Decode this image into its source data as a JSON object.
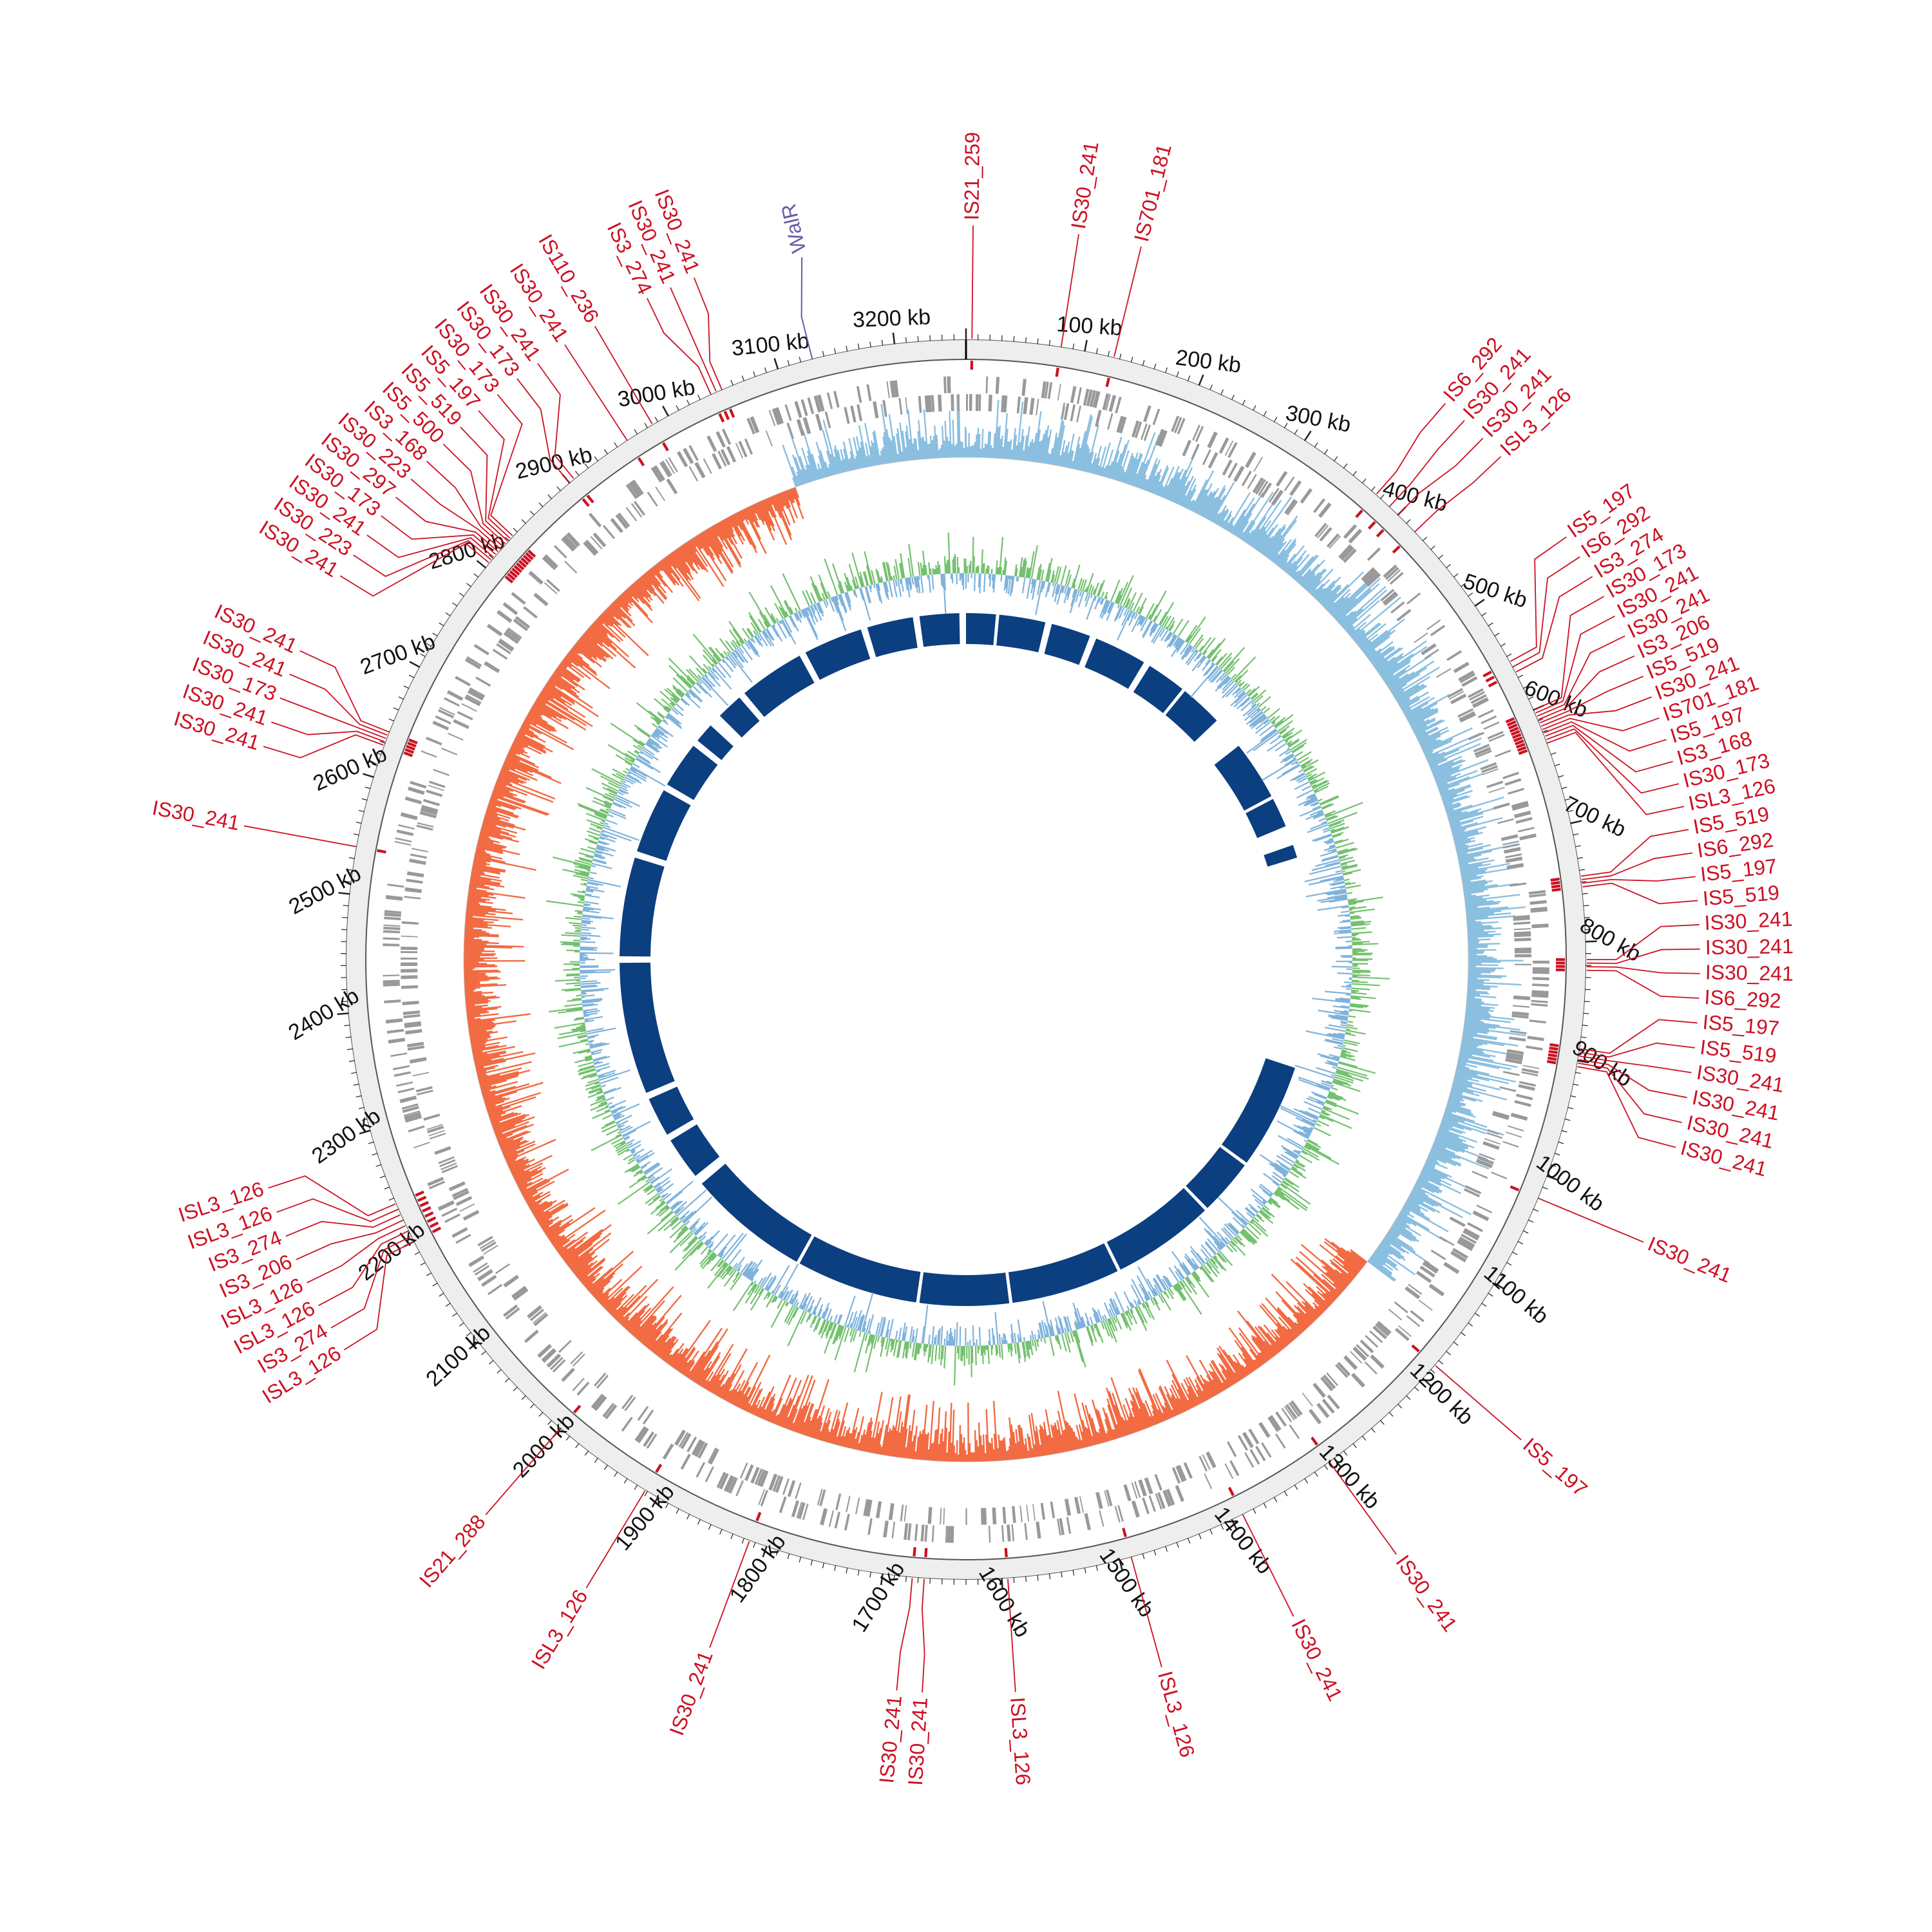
{
  "colors": {
    "is_element": "#cc1122",
    "highlight": "#6a5aa8",
    "tick_label": "#111111",
    "backbone_fill": "#eeeeee",
    "backbone_stroke": "#555555",
    "cds": "#999999",
    "skew_positive": "#f26b43",
    "skew_negative": "#8bbfe0",
    "gc_content": "#74c170",
    "gc_content_alt": "#7fb3dc",
    "conserved_blocks": "#0b3f80"
  },
  "genome_length_kb": 3260,
  "axis": {
    "tick_labels": [
      "100 kb",
      "200 kb",
      "300 kb",
      "400 kb",
      "500 kb",
      "600 kb",
      "700 kb",
      "800 kb",
      "900 kb",
      "1000 kb",
      "1100 kb",
      "1200 kb",
      "1300 kb",
      "1400 kb",
      "1500 kb",
      "1600 kb",
      "1700 kb",
      "1800 kb",
      "1900 kb",
      "2000 kb",
      "2100 kb",
      "2200 kb",
      "2300 kb",
      "2400 kb",
      "2500 kb",
      "2600 kb",
      "2700 kb",
      "2800 kb",
      "2900 kb",
      "3000 kb",
      "3100 kb",
      "3200 kb"
    ],
    "tick_positions_kb": [
      100,
      200,
      300,
      400,
      500,
      600,
      700,
      800,
      900,
      1000,
      1100,
      1200,
      1300,
      1400,
      1500,
      1600,
      1700,
      1800,
      1900,
      2000,
      2100,
      2200,
      2300,
      2400,
      2500,
      2600,
      2700,
      2800,
      2900,
      3000,
      3100,
      3200
    ]
  },
  "is_elements": [
    {
      "label": "IS21_259",
      "kb": 5
    },
    {
      "label": "IS30_241",
      "kb": 80
    },
    {
      "label": "IS701_181",
      "kb": 125
    },
    {
      "label": "IS6_292",
      "kb": 375
    },
    {
      "label": "IS30_241",
      "kb": 390
    },
    {
      "label": "IS30_241",
      "kb": 400
    },
    {
      "label": "ISL3_126",
      "kb": 420
    },
    {
      "label": "IS5_197",
      "kb": 555
    },
    {
      "label": "IS6_292",
      "kb": 560
    },
    {
      "label": "IS3_274",
      "kb": 565
    },
    {
      "label": "IS30_173",
      "kb": 600
    },
    {
      "label": "IS30_241",
      "kb": 603
    },
    {
      "label": "IS30_241",
      "kb": 606
    },
    {
      "label": "IS3_206",
      "kb": 609
    },
    {
      "label": "IS5_519",
      "kb": 612
    },
    {
      "label": "IS30_241",
      "kb": 615
    },
    {
      "label": "IS701_181",
      "kb": 618
    },
    {
      "label": "IS5_197",
      "kb": 621
    },
    {
      "label": "IS3_168",
      "kb": 624
    },
    {
      "label": "IS30_173",
      "kb": 627
    },
    {
      "label": "ISL3_126",
      "kb": 630
    },
    {
      "label": "IS5_519",
      "kb": 745
    },
    {
      "label": "IS6_292",
      "kb": 748
    },
    {
      "label": "IS5_197",
      "kb": 751
    },
    {
      "label": "IS5_519",
      "kb": 754
    },
    {
      "label": "IS30_241",
      "kb": 815
    },
    {
      "label": "IS30_241",
      "kb": 818
    },
    {
      "label": "IS30_241",
      "kb": 821
    },
    {
      "label": "IS6_292",
      "kb": 824
    },
    {
      "label": "IS5_197",
      "kb": 890
    },
    {
      "label": "IS5_519",
      "kb": 893
    },
    {
      "label": "IS30_241",
      "kb": 896
    },
    {
      "label": "IS30_241",
      "kb": 899
    },
    {
      "label": "IS30_241",
      "kb": 902
    },
    {
      "label": "IS30_241",
      "kb": 905
    },
    {
      "label": "IS30_241",
      "kb": 1020
    },
    {
      "label": "IS5_197",
      "kb": 1185
    },
    {
      "label": "IS30_241",
      "kb": 1305
    },
    {
      "label": "IS30_241",
      "kb": 1390
    },
    {
      "label": "ISL3_126",
      "kb": 1490
    },
    {
      "label": "ISL3_126",
      "kb": 1595
    },
    {
      "label": "IS30_241",
      "kb": 1675
    },
    {
      "label": "IS30_241",
      "kb": 1665
    },
    {
      "label": "IS30_241",
      "kb": 1815
    },
    {
      "label": "ISL3_126",
      "kb": 1912
    },
    {
      "label": "IS21_288",
      "kb": 2000
    },
    {
      "label": "ISL3_126",
      "kb": 2235
    },
    {
      "label": "ISL3_126",
      "kb": 2230
    },
    {
      "label": "IS3_274",
      "kb": 2225
    },
    {
      "label": "IS3_206",
      "kb": 2220
    },
    {
      "label": "ISL3_126",
      "kb": 2215
    },
    {
      "label": "ISL3_126",
      "kb": 2210
    },
    {
      "label": "IS3_274",
      "kb": 2205
    },
    {
      "label": "ISL3_126",
      "kb": 2200
    },
    {
      "label": "IS30_241",
      "kb": 2540
    },
    {
      "label": "IS30_241",
      "kb": 2640
    },
    {
      "label": "IS30_241",
      "kb": 2637
    },
    {
      "label": "IS30_173",
      "kb": 2634
    },
    {
      "label": "IS30_241",
      "kb": 2631
    },
    {
      "label": "IS30_241",
      "kb": 2628
    },
    {
      "label": "IS30_241",
      "kb": 2805
    },
    {
      "label": "IS30_223",
      "kb": 2808
    },
    {
      "label": "IS30_241",
      "kb": 2811
    },
    {
      "label": "IS30_173",
      "kb": 2814
    },
    {
      "label": "IS30_297",
      "kb": 2817
    },
    {
      "label": "IS30_223",
      "kb": 2820
    },
    {
      "label": "IS3_168",
      "kb": 2823
    },
    {
      "label": "IS5_500",
      "kb": 2826
    },
    {
      "label": "IS5_519",
      "kb": 2829
    },
    {
      "label": "IS5_197",
      "kb": 2832
    },
    {
      "label": "IS30_173",
      "kb": 2835
    },
    {
      "label": "IS30_173",
      "kb": 2900
    },
    {
      "label": "IS30_241",
      "kb": 2905
    },
    {
      "label": "IS30_241",
      "kb": 2960
    },
    {
      "label": "IS110_236",
      "kb": 2985
    },
    {
      "label": "IS3_274",
      "kb": 3040
    },
    {
      "label": "IS30_241",
      "kb": 3045
    },
    {
      "label": "IS30_241",
      "kb": 3050
    }
  ],
  "highlight": {
    "label": "WalR",
    "kb": 3130
  }
}
